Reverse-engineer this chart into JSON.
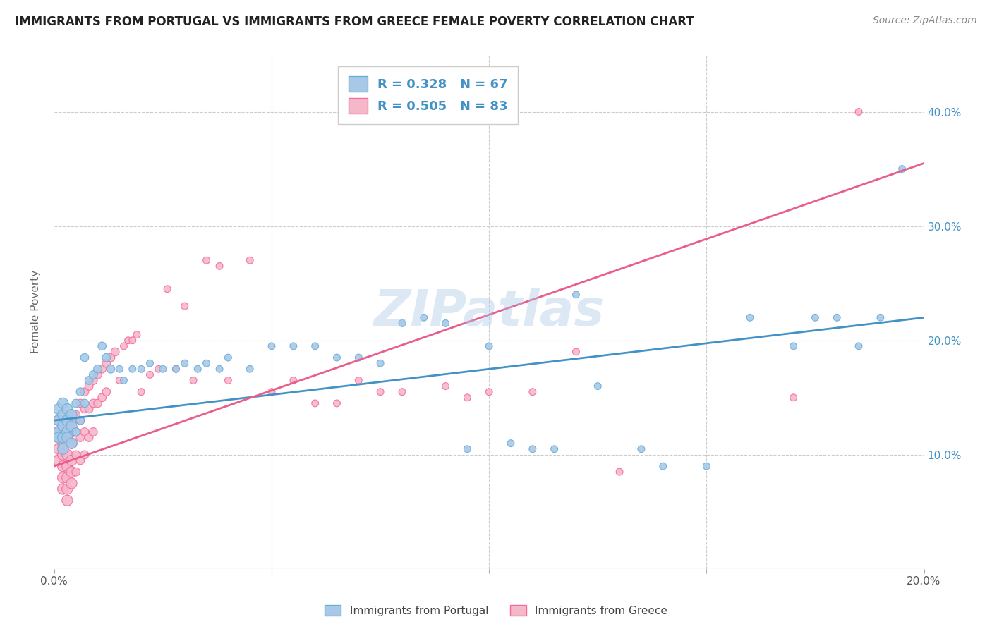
{
  "title": "IMMIGRANTS FROM PORTUGAL VS IMMIGRANTS FROM GREECE FEMALE POVERTY CORRELATION CHART",
  "source": "Source: ZipAtlas.com",
  "ylabel": "Female Poverty",
  "xlim": [
    0.0,
    0.2
  ],
  "ylim": [
    0.0,
    0.45
  ],
  "xticks": [
    0.0,
    0.05,
    0.1,
    0.15,
    0.2
  ],
  "yticks": [
    0.0,
    0.1,
    0.2,
    0.3,
    0.4
  ],
  "xtick_labels": [
    "0.0%",
    "",
    "",
    "",
    "20.0%"
  ],
  "ytick_labels_right": [
    "",
    "10.0%",
    "20.0%",
    "30.0%",
    "40.0%"
  ],
  "portugal_R": 0.328,
  "portugal_N": 67,
  "greece_R": 0.505,
  "greece_N": 83,
  "portugal_color": "#a8c8e8",
  "greece_color": "#f4b8c8",
  "portugal_edge_color": "#6baed6",
  "greece_edge_color": "#f768a1",
  "portugal_line_color": "#4292c6",
  "greece_line_color": "#e85d8a",
  "watermark": "ZIPatlas",
  "background_color": "#ffffff",
  "grid_color": "#cccccc",
  "portugal_line_y0": 0.13,
  "portugal_line_y1": 0.22,
  "greece_line_y0": 0.09,
  "greece_line_y1": 0.355,
  "portugal_scatter_x": [
    0.001,
    0.001,
    0.001,
    0.001,
    0.002,
    0.002,
    0.002,
    0.002,
    0.002,
    0.003,
    0.003,
    0.003,
    0.003,
    0.004,
    0.004,
    0.004,
    0.005,
    0.005,
    0.006,
    0.006,
    0.007,
    0.007,
    0.008,
    0.009,
    0.01,
    0.011,
    0.012,
    0.013,
    0.015,
    0.016,
    0.018,
    0.02,
    0.022,
    0.025,
    0.028,
    0.03,
    0.033,
    0.035,
    0.038,
    0.04,
    0.045,
    0.05,
    0.055,
    0.06,
    0.065,
    0.07,
    0.075,
    0.08,
    0.085,
    0.09,
    0.095,
    0.1,
    0.105,
    0.11,
    0.115,
    0.12,
    0.125,
    0.135,
    0.14,
    0.15,
    0.16,
    0.17,
    0.175,
    0.18,
    0.185,
    0.19,
    0.195
  ],
  "portugal_scatter_y": [
    0.13,
    0.14,
    0.12,
    0.115,
    0.135,
    0.145,
    0.125,
    0.105,
    0.115,
    0.14,
    0.12,
    0.13,
    0.115,
    0.135,
    0.125,
    0.11,
    0.145,
    0.12,
    0.155,
    0.13,
    0.185,
    0.145,
    0.165,
    0.17,
    0.175,
    0.195,
    0.185,
    0.175,
    0.175,
    0.165,
    0.175,
    0.175,
    0.18,
    0.175,
    0.175,
    0.18,
    0.175,
    0.18,
    0.175,
    0.185,
    0.175,
    0.195,
    0.195,
    0.195,
    0.185,
    0.185,
    0.18,
    0.215,
    0.22,
    0.215,
    0.105,
    0.195,
    0.11,
    0.105,
    0.105,
    0.24,
    0.16,
    0.105,
    0.09,
    0.09,
    0.22,
    0.195,
    0.22,
    0.22,
    0.195,
    0.22,
    0.35
  ],
  "greece_scatter_x": [
    0.001,
    0.001,
    0.001,
    0.001,
    0.001,
    0.002,
    0.002,
    0.002,
    0.002,
    0.002,
    0.002,
    0.002,
    0.003,
    0.003,
    0.003,
    0.003,
    0.003,
    0.003,
    0.003,
    0.003,
    0.004,
    0.004,
    0.004,
    0.004,
    0.004,
    0.004,
    0.005,
    0.005,
    0.005,
    0.005,
    0.006,
    0.006,
    0.006,
    0.006,
    0.007,
    0.007,
    0.007,
    0.007,
    0.008,
    0.008,
    0.008,
    0.009,
    0.009,
    0.009,
    0.01,
    0.01,
    0.011,
    0.011,
    0.012,
    0.012,
    0.013,
    0.014,
    0.015,
    0.016,
    0.017,
    0.018,
    0.019,
    0.02,
    0.022,
    0.024,
    0.026,
    0.028,
    0.03,
    0.032,
    0.035,
    0.038,
    0.04,
    0.045,
    0.05,
    0.055,
    0.06,
    0.065,
    0.07,
    0.075,
    0.08,
    0.09,
    0.095,
    0.1,
    0.11,
    0.12,
    0.13,
    0.17,
    0.185
  ],
  "greece_scatter_y": [
    0.13,
    0.12,
    0.115,
    0.105,
    0.095,
    0.13,
    0.12,
    0.11,
    0.1,
    0.09,
    0.08,
    0.07,
    0.13,
    0.12,
    0.11,
    0.1,
    0.09,
    0.08,
    0.07,
    0.06,
    0.13,
    0.12,
    0.11,
    0.095,
    0.085,
    0.075,
    0.135,
    0.12,
    0.1,
    0.085,
    0.145,
    0.13,
    0.115,
    0.095,
    0.155,
    0.14,
    0.12,
    0.1,
    0.16,
    0.14,
    0.115,
    0.165,
    0.145,
    0.12,
    0.17,
    0.145,
    0.175,
    0.15,
    0.18,
    0.155,
    0.185,
    0.19,
    0.165,
    0.195,
    0.2,
    0.2,
    0.205,
    0.155,
    0.17,
    0.175,
    0.245,
    0.175,
    0.23,
    0.165,
    0.27,
    0.265,
    0.165,
    0.27,
    0.155,
    0.165,
    0.145,
    0.145,
    0.165,
    0.155,
    0.155,
    0.16,
    0.15,
    0.155,
    0.155,
    0.19,
    0.085,
    0.15,
    0.4
  ]
}
